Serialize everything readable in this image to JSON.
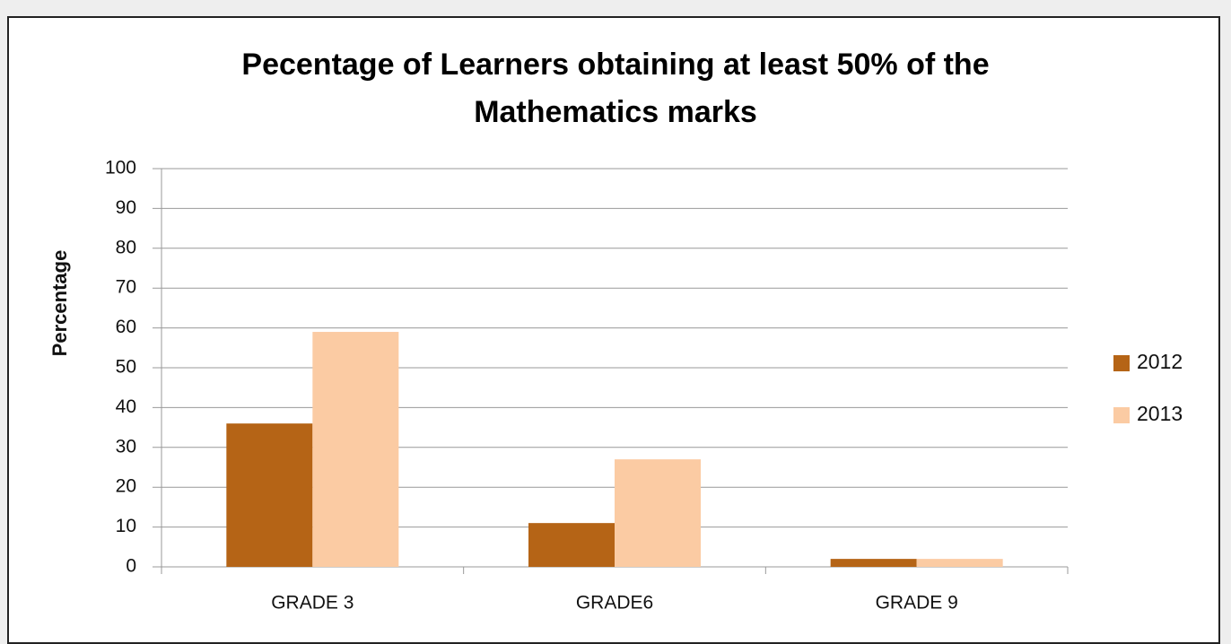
{
  "chart_data": {
    "type": "bar",
    "title": "Pecentage of Learners obtaining at least 50% of the Mathematics marks",
    "y_label": "Percentage",
    "categories": [
      "GRADE 3",
      "GRADE6",
      "GRADE 9"
    ],
    "series": [
      {
        "name": "2012",
        "color": "#b56416",
        "values": [
          36,
          11,
          2
        ]
      },
      {
        "name": "2013",
        "color": "#fbcba3",
        "values": [
          59,
          27,
          2
        ]
      }
    ],
    "ylim": [
      0,
      100
    ],
    "yticks": [
      0,
      10,
      20,
      30,
      40,
      50,
      60,
      70,
      80,
      90,
      100
    ],
    "grid": true,
    "legend": "right"
  }
}
